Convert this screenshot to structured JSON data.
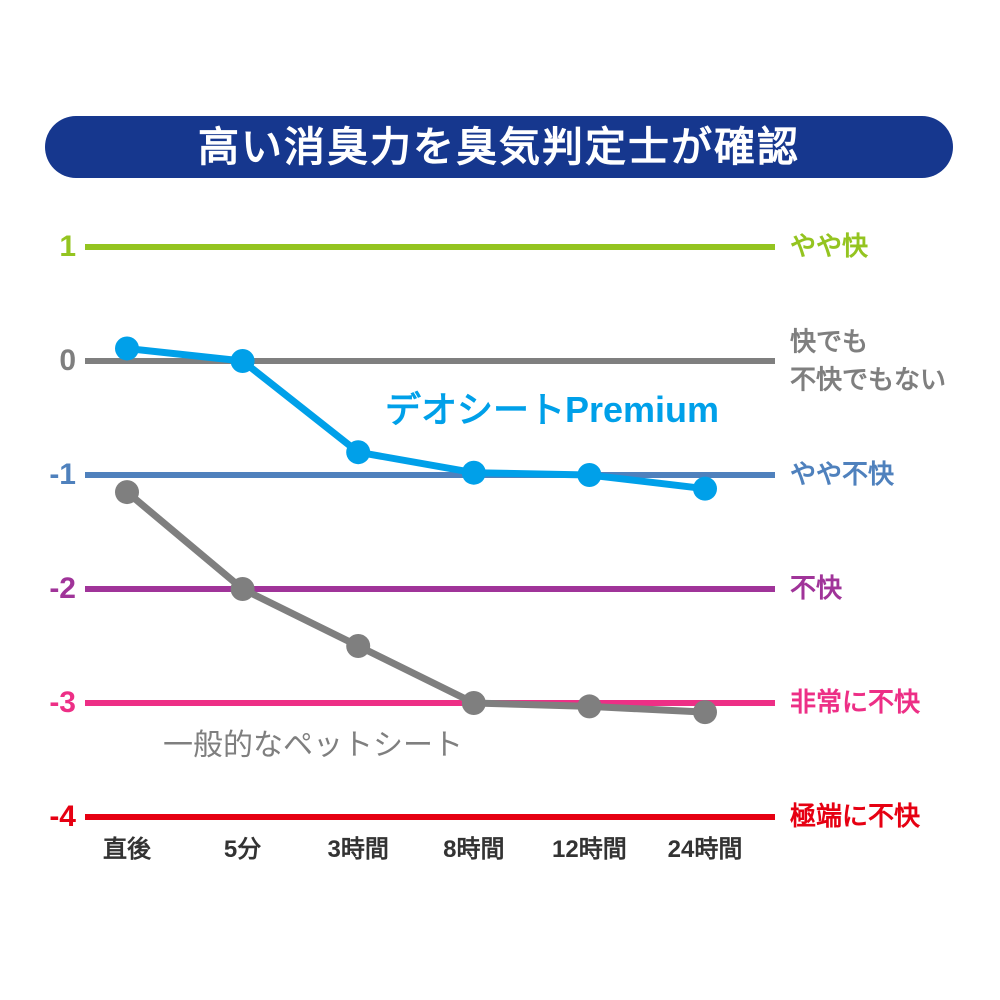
{
  "title": "高い消臭力を臭気判定士が確認",
  "colors": {
    "banner_bg": "#16378e",
    "banner_text": "#ffffff",
    "premium_blue": "#00a0e9",
    "generic_gray": "#7f7f7f",
    "x_label": "#333333"
  },
  "chart_data": {
    "type": "line",
    "categories": [
      "直後",
      "5分",
      "3時間",
      "8時間",
      "12時間",
      "24時間"
    ],
    "series": [
      {
        "name": "デオシートPremium",
        "color": "#00a0e9",
        "values": [
          0.11,
          0,
          -0.8,
          -0.98,
          -1.0,
          -1.12
        ]
      },
      {
        "name": "一般的なペットシート",
        "color": "#7f7f7f",
        "values": [
          -1.15,
          -2.0,
          -2.5,
          -3.0,
          -3.03,
          -3.08
        ]
      }
    ],
    "grid_levels": [
      {
        "value": 1,
        "tick": "1",
        "label": "やや快",
        "color": "#94c420"
      },
      {
        "value": 0,
        "tick": "0",
        "label": "快でも\n不快でもない",
        "color": "#7f7f7f"
      },
      {
        "value": -1,
        "tick": "-1",
        "label": "やや不快",
        "color": "#4f81bd"
      },
      {
        "value": -2,
        "tick": "-2",
        "label": "不快",
        "color": "#a03499"
      },
      {
        "value": -3,
        "tick": "-3",
        "label": "非常に不快",
        "color": "#ed2f86"
      },
      {
        "value": -4,
        "tick": "-4",
        "label": "極端に不快",
        "color": "#e60012"
      }
    ],
    "ylim": [
      -4,
      1
    ],
    "legend_position": "inline-labels",
    "grid": true,
    "xlabel": "",
    "ylabel": ""
  }
}
